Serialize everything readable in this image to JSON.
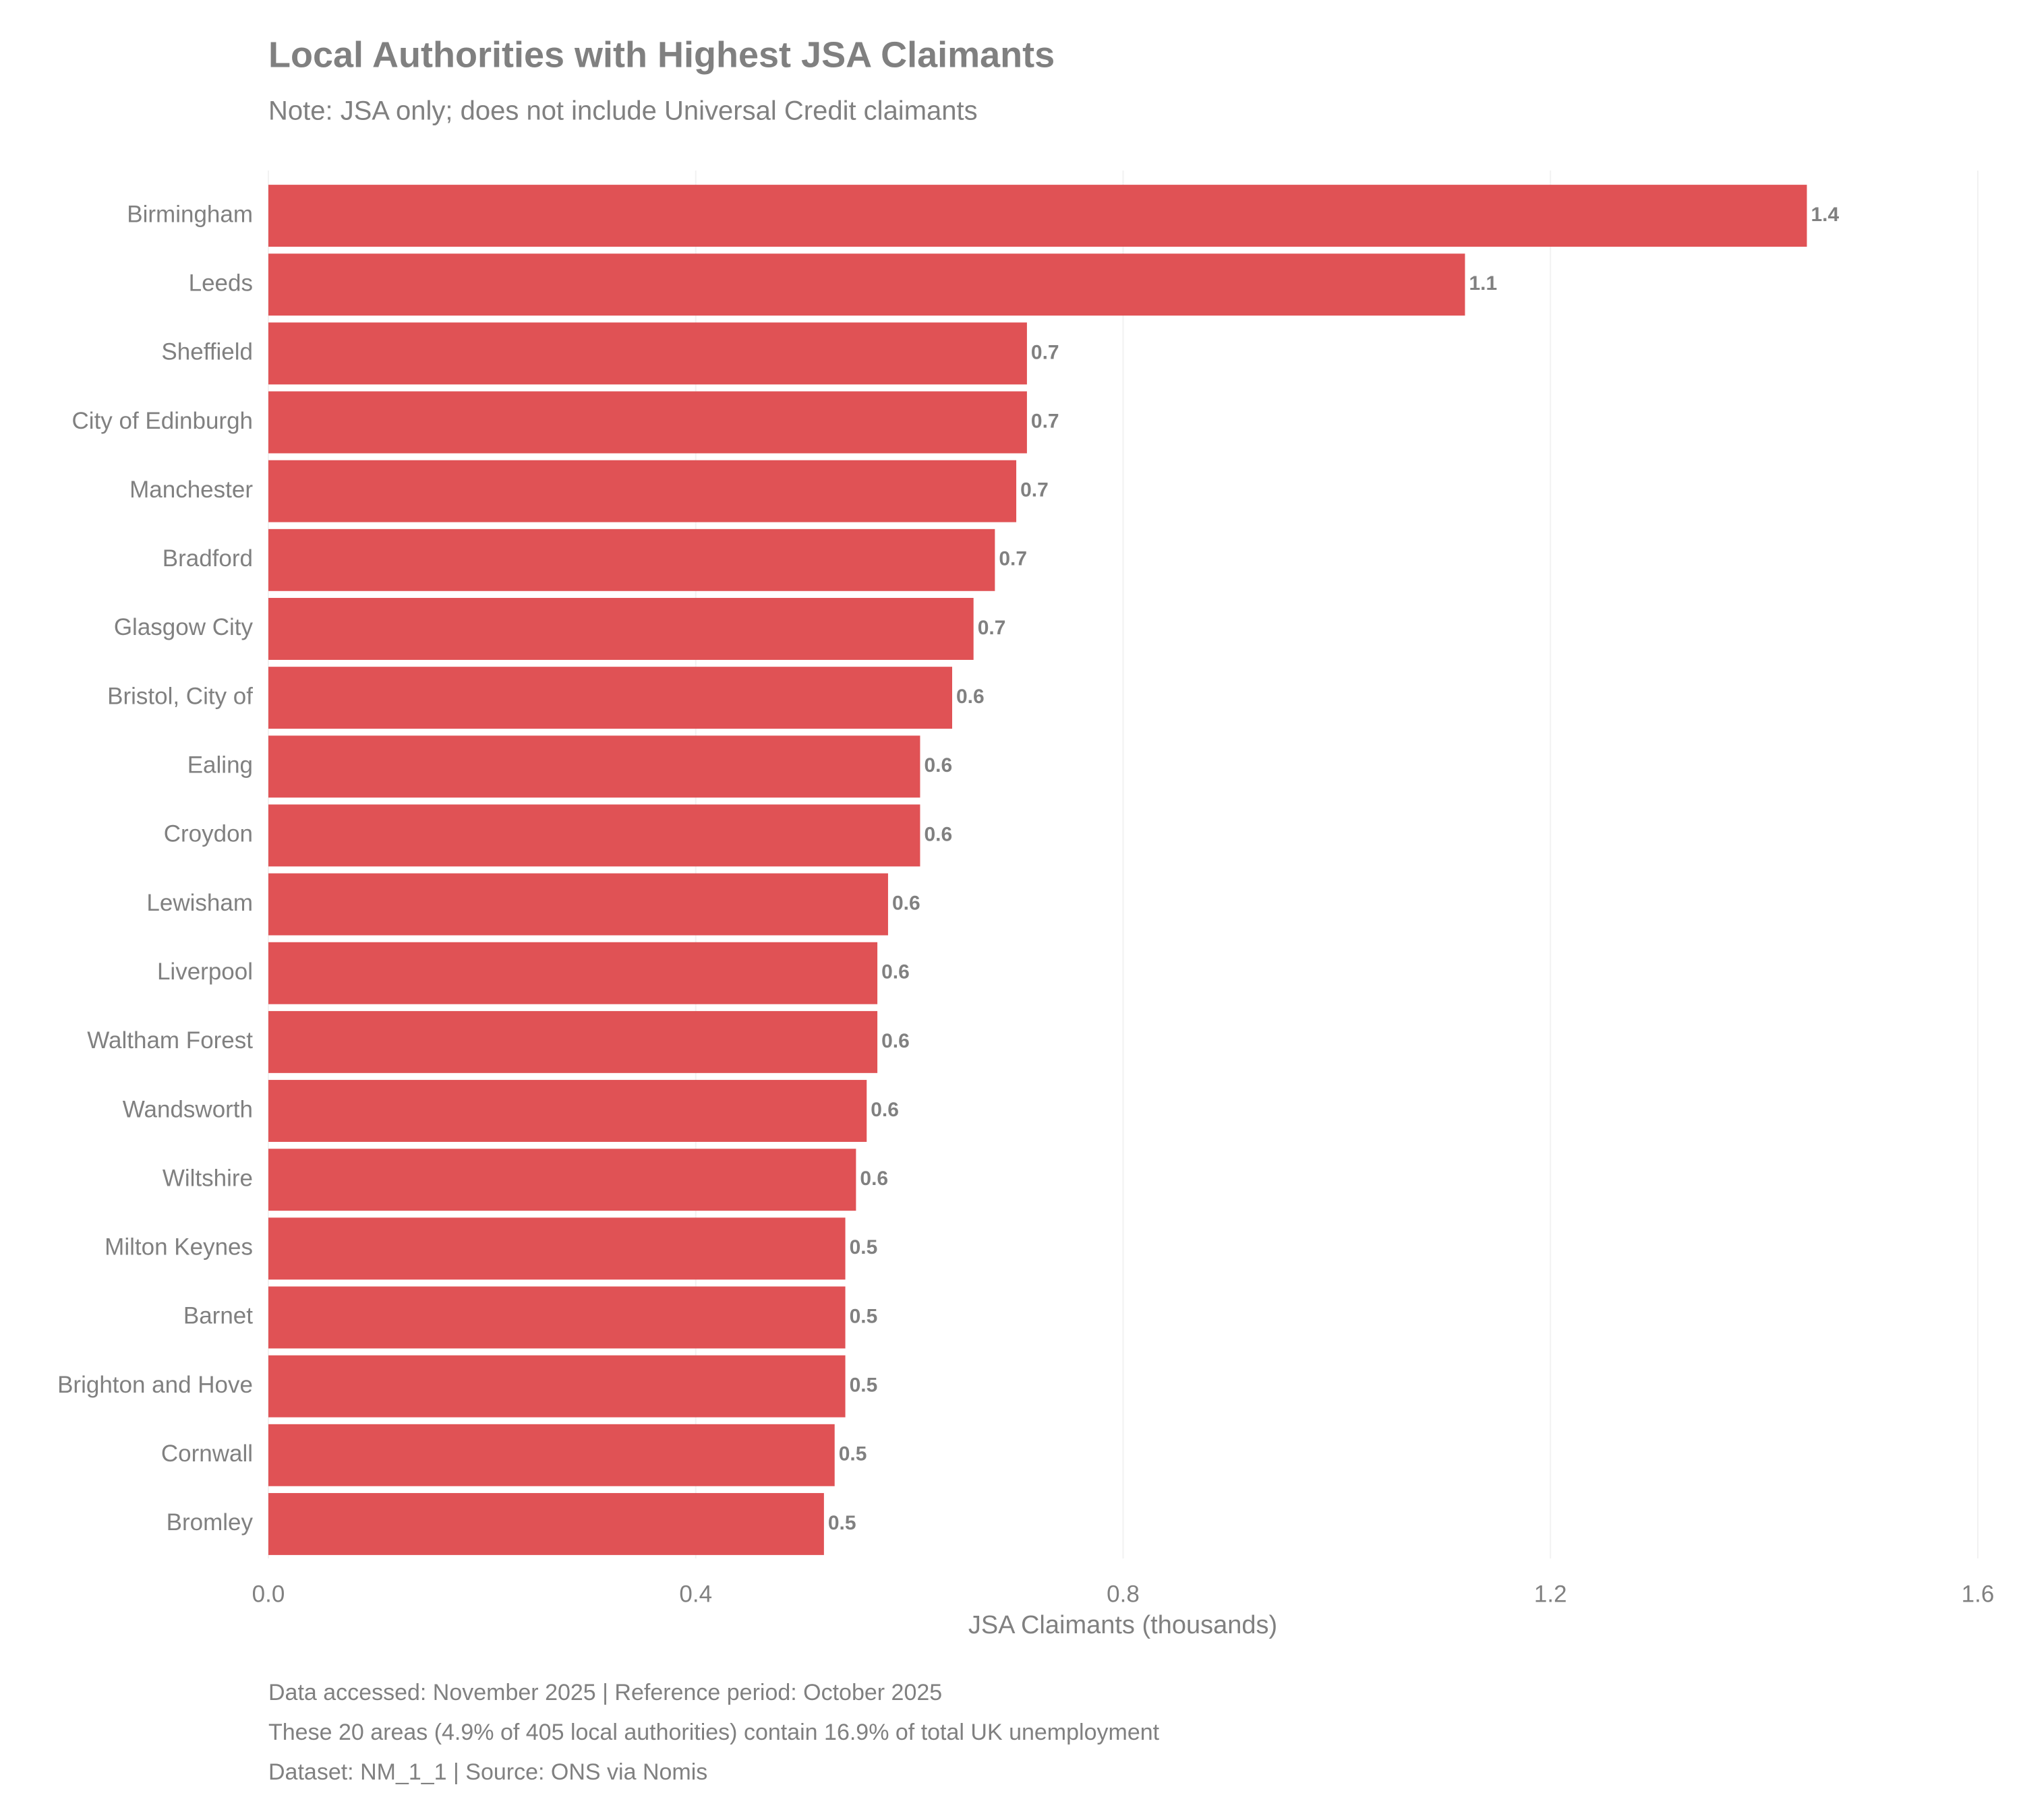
{
  "chart_data": {
    "type": "bar",
    "orientation": "horizontal",
    "title": "Local Authorities with Highest JSA Claimants",
    "subtitle": "Note: JSA only; does not include Universal Credit claimants",
    "xlabel": "JSA Claimants (thousands)",
    "notes": [
      "Data accessed: November 2025 | Reference period: October 2025",
      "These 20 areas (4.9% of 405 local authorities) contain 16.9% of total UK unemployment",
      "Dataset: NM_1_1 | Source: ONS via Nomis"
    ],
    "categories": [
      "Birmingham",
      "Leeds",
      "Sheffield",
      "City of Edinburgh",
      "Manchester",
      "Bradford",
      "Glasgow City",
      "Bristol, City of",
      "Ealing",
      "Croydon",
      "Lewisham",
      "Liverpool",
      "Waltham Forest",
      "Wandsworth",
      "Wiltshire",
      "Milton Keynes",
      "Barnet",
      "Brighton and Hove",
      "Cornwall",
      "Bromley"
    ],
    "values": [
      1.44,
      1.12,
      0.71,
      0.71,
      0.7,
      0.68,
      0.66,
      0.64,
      0.61,
      0.61,
      0.58,
      0.57,
      0.57,
      0.56,
      0.55,
      0.54,
      0.54,
      0.54,
      0.53,
      0.52
    ],
    "value_labels": [
      "1.4",
      "1.1",
      "0.7",
      "0.7",
      "0.7",
      "0.7",
      "0.7",
      "0.6",
      "0.6",
      "0.6",
      "0.6",
      "0.6",
      "0.6",
      "0.6",
      "0.6",
      "0.5",
      "0.5",
      "0.5",
      "0.5",
      "0.5"
    ],
    "color": "#e05255",
    "xlim": [
      0,
      1.6
    ],
    "xticks": [
      {
        "value": 0,
        "label": "0.0"
      },
      0.4,
      0.8,
      1.2,
      1.6
    ],
    "grid": true
  }
}
